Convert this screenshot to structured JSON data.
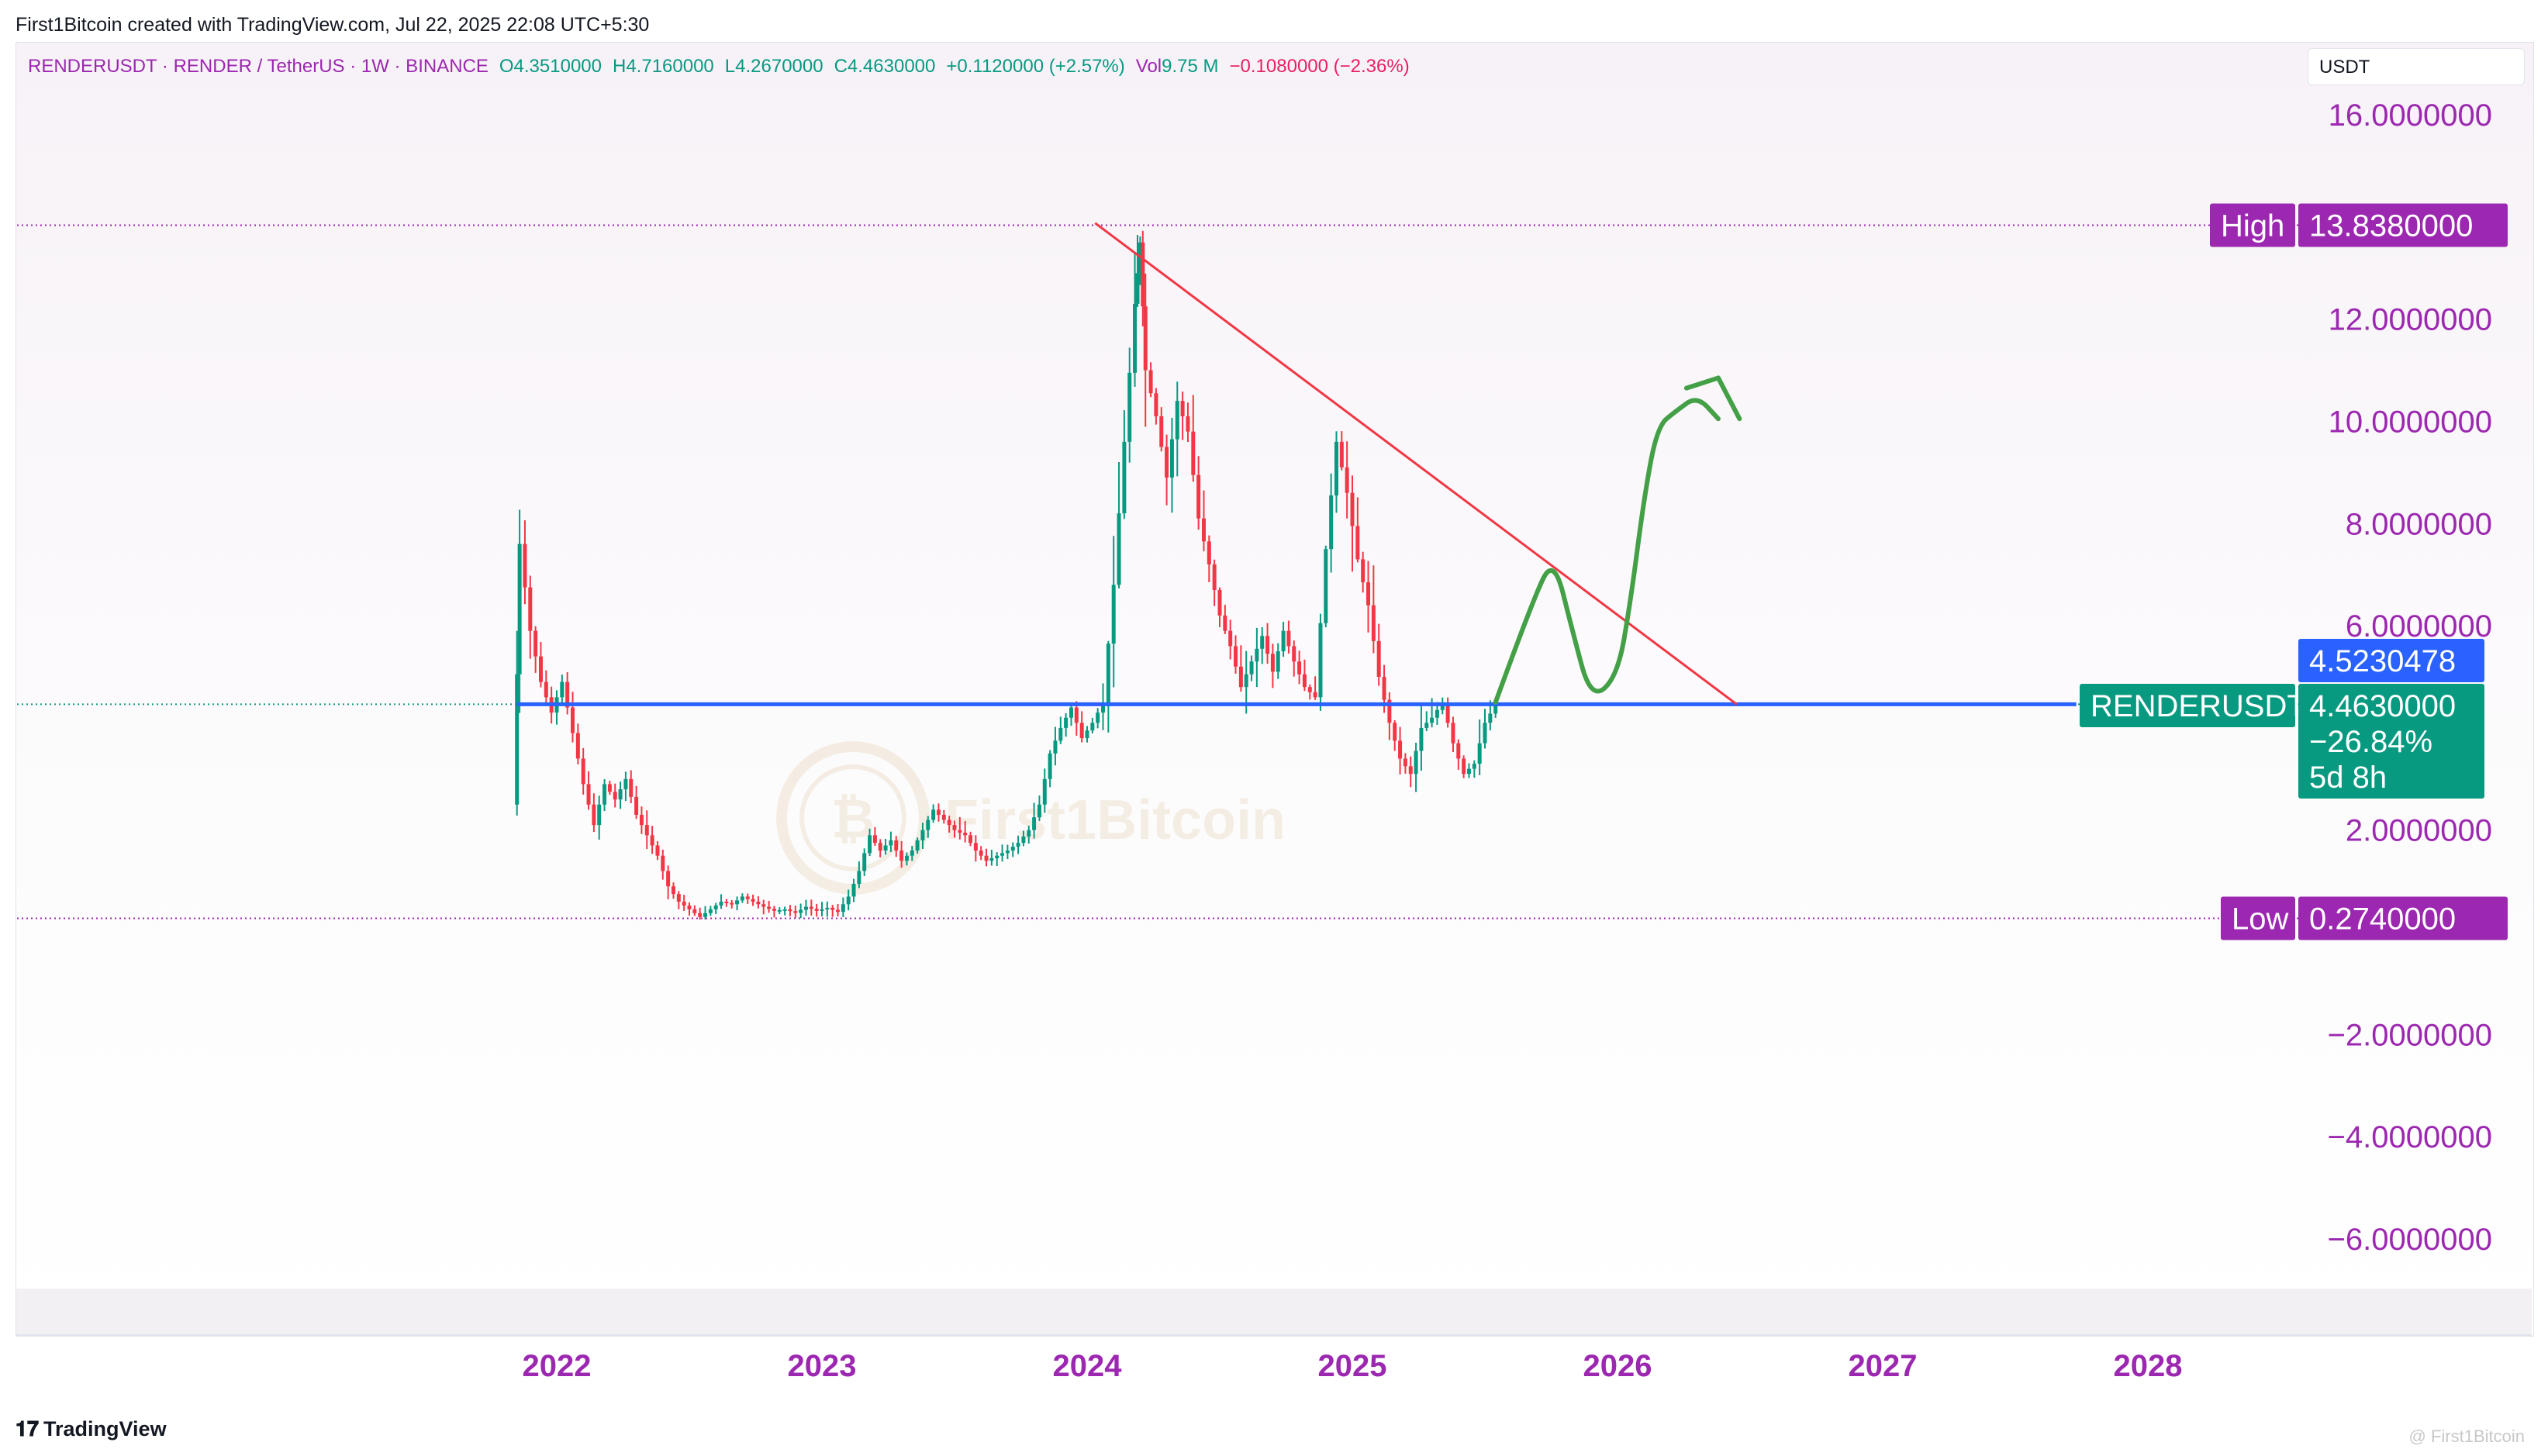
{
  "header": {
    "credit": "First1Bitcoin created with TradingView.com, Jul 22, 2025 22:08 UTC+5:30"
  },
  "legend": {
    "symbol": "RENDERUSDT · RENDER / TetherUS · 1W · BINANCE",
    "open": "O4.3510000",
    "high": "H4.7160000",
    "low": "L4.2670000",
    "close": "C4.4630000",
    "change": "+0.1120000 (+2.57%)",
    "vol_label": "Vol",
    "vol_value": "9.75 M",
    "vol_change": "−0.1080000 (−2.36%)"
  },
  "currency": "USDT",
  "footer": {
    "brand": "TradingView",
    "watermark": "@ First1Bitcoin"
  },
  "watermark_text": "First1Bitcoin",
  "colors": {
    "up": "#089981",
    "down": "#f23645",
    "axis_text": "#9c27b0",
    "support": "#2962ff",
    "trendline": "#f23645",
    "projection": "#43a047",
    "tag_purple": "#9c27b0",
    "tag_green": "#089981",
    "tag_blue": "#2962ff"
  },
  "chart_data": {
    "type": "candlestick",
    "timeframe": "1W",
    "ylim": [
      -7.3,
      17.3
    ],
    "y_ticks": [
      "16.0000000",
      "12.0000000",
      "10.0000000",
      "8.0000000",
      "6.0000000",
      "2.0000000",
      "−2.0000000",
      "−4.0000000",
      "−6.0000000"
    ],
    "y_tick_values": [
      16,
      12,
      10,
      8,
      6,
      2,
      -2,
      -4,
      -6
    ],
    "x_ticks": [
      "2022",
      "2023",
      "2024",
      "2025",
      "2026",
      "2027",
      "2028"
    ],
    "x_range": [
      2021.0,
      2029.0
    ],
    "high": {
      "label": "High",
      "value": "13.8380000",
      "y": 13.838
    },
    "low": {
      "label": "Low",
      "value": "0.2740000",
      "y": 0.274
    },
    "last_price": {
      "symbol": "RENDERUSDT",
      "value": "4.4630000",
      "change": "−26.84%",
      "countdown": "5d 8h",
      "y": 4.463
    },
    "line_tag": {
      "value": "4.5230478",
      "y": 4.523
    },
    "support_line": {
      "y": 4.463,
      "x_start": 2021.85,
      "x_end": 2027.73
    },
    "trendline": {
      "start": [
        2024.03,
        13.88
      ],
      "end": [
        2026.45,
        4.46
      ]
    },
    "projection_path": [
      [
        2025.54,
        4.5
      ],
      [
        2025.68,
        6.5
      ],
      [
        2025.76,
        7.35
      ],
      [
        2025.83,
        5.9
      ],
      [
        2025.9,
        4.55
      ],
      [
        2026.0,
        5.0
      ],
      [
        2026.05,
        6.5
      ],
      [
        2026.1,
        8.5
      ],
      [
        2026.15,
        9.9
      ],
      [
        2026.22,
        10.2
      ],
      [
        2026.3,
        10.5
      ],
      [
        2026.38,
        10.05
      ]
    ],
    "projection_arrowhead": [
      [
        2026.26,
        10.65
      ],
      [
        2026.38,
        10.85
      ],
      [
        2026.46,
        10.05
      ]
    ],
    "swing_points": [
      [
        2021.84,
        2.5
      ],
      [
        2021.86,
        7.6
      ],
      [
        2021.9,
        5.9
      ],
      [
        2021.94,
        4.9
      ],
      [
        2021.98,
        4.3
      ],
      [
        2022.02,
        4.9
      ],
      [
        2022.06,
        3.9
      ],
      [
        2022.1,
        2.9
      ],
      [
        2022.14,
        2.1
      ],
      [
        2022.18,
        2.9
      ],
      [
        2022.22,
        2.6
      ],
      [
        2022.26,
        3.0
      ],
      [
        2022.3,
        2.3
      ],
      [
        2022.34,
        1.9
      ],
      [
        2022.38,
        1.5
      ],
      [
        2022.42,
        0.9
      ],
      [
        2022.46,
        0.6
      ],
      [
        2022.5,
        0.45
      ],
      [
        2022.54,
        0.3
      ],
      [
        2022.58,
        0.45
      ],
      [
        2022.62,
        0.6
      ],
      [
        2022.66,
        0.55
      ],
      [
        2022.7,
        0.7
      ],
      [
        2022.74,
        0.6
      ],
      [
        2022.78,
        0.5
      ],
      [
        2022.82,
        0.42
      ],
      [
        2022.86,
        0.45
      ],
      [
        2022.9,
        0.38
      ],
      [
        2022.94,
        0.5
      ],
      [
        2022.98,
        0.42
      ],
      [
        2023.02,
        0.48
      ],
      [
        2023.06,
        0.4
      ],
      [
        2023.1,
        0.7
      ],
      [
        2023.14,
        1.2
      ],
      [
        2023.18,
        1.9
      ],
      [
        2023.22,
        1.6
      ],
      [
        2023.26,
        1.8
      ],
      [
        2023.3,
        1.4
      ],
      [
        2023.34,
        1.6
      ],
      [
        2023.38,
        2.0
      ],
      [
        2023.42,
        2.4
      ],
      [
        2023.46,
        2.2
      ],
      [
        2023.5,
        2.0
      ],
      [
        2023.54,
        1.9
      ],
      [
        2023.58,
        1.6
      ],
      [
        2023.62,
        1.4
      ],
      [
        2023.66,
        1.5
      ],
      [
        2023.7,
        1.6
      ],
      [
        2023.74,
        1.75
      ],
      [
        2023.78,
        2.0
      ],
      [
        2023.82,
        2.5
      ],
      [
        2023.86,
        3.5
      ],
      [
        2023.9,
        4.0
      ],
      [
        2023.94,
        4.4
      ],
      [
        2023.98,
        3.8
      ],
      [
        2024.02,
        4.1
      ],
      [
        2024.06,
        4.5
      ],
      [
        2024.1,
        6.8
      ],
      [
        2024.14,
        9.6
      ],
      [
        2024.18,
        12.3
      ],
      [
        2024.2,
        13.5
      ],
      [
        2024.22,
        11.0
      ],
      [
        2024.26,
        10.1
      ],
      [
        2024.3,
        8.9
      ],
      [
        2024.34,
        10.4
      ],
      [
        2024.38,
        9.8
      ],
      [
        2024.42,
        8.1
      ],
      [
        2024.46,
        7.2
      ],
      [
        2024.5,
        6.2
      ],
      [
        2024.54,
        5.6
      ],
      [
        2024.58,
        4.8
      ],
      [
        2024.62,
        5.3
      ],
      [
        2024.66,
        5.8
      ],
      [
        2024.7,
        5.1
      ],
      [
        2024.74,
        5.9
      ],
      [
        2024.78,
        5.3
      ],
      [
        2024.82,
        4.8
      ],
      [
        2024.86,
        4.6
      ],
      [
        2024.9,
        7.5
      ],
      [
        2024.94,
        9.6
      ],
      [
        2024.98,
        8.6
      ],
      [
        2025.02,
        7.3
      ],
      [
        2025.06,
        6.4
      ],
      [
        2025.1,
        5.0
      ],
      [
        2025.14,
        4.1
      ],
      [
        2025.18,
        3.4
      ],
      [
        2025.22,
        3.1
      ],
      [
        2025.26,
        4.0
      ],
      [
        2025.3,
        4.2
      ],
      [
        2025.34,
        4.5
      ],
      [
        2025.38,
        3.7
      ],
      [
        2025.42,
        3.1
      ],
      [
        2025.46,
        3.3
      ],
      [
        2025.5,
        4.1
      ],
      [
        2025.54,
        4.46
      ]
    ]
  }
}
